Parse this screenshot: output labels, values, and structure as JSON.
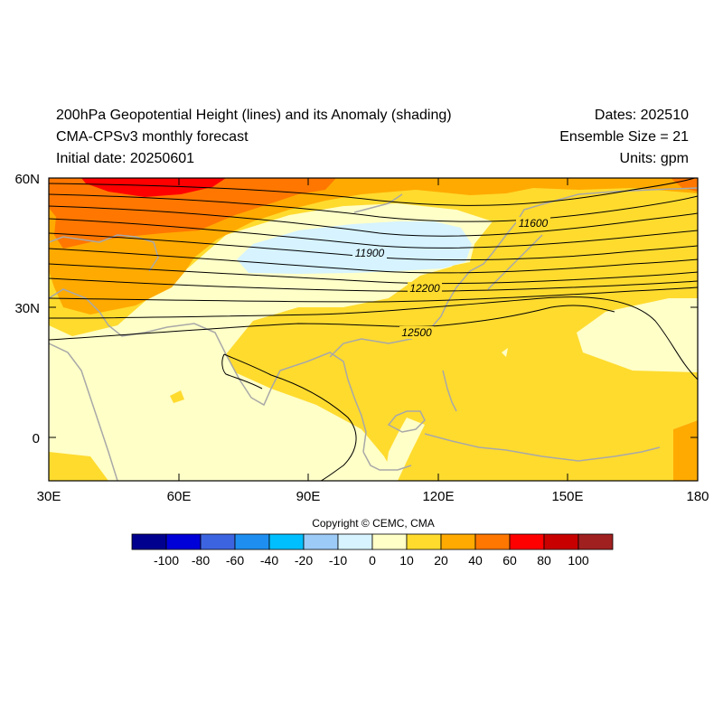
{
  "header": {
    "title": "200hPa Geopotential Height (lines) and its Anomaly (shading)",
    "model": "CMA-CPSv3 monthly forecast",
    "initial_date": "Initial date: 20250601",
    "dates": "Dates: 202510",
    "ensemble": "Ensemble Size = 21",
    "units": "Units: gpm"
  },
  "axes": {
    "lon_ticks": [
      "30E",
      "60E",
      "90E",
      "120E",
      "150E",
      "180"
    ],
    "lat_ticks": [
      "60N",
      "30N",
      "0"
    ]
  },
  "contour_labels": [
    "11600",
    "11900",
    "12200",
    "12500"
  ],
  "copyright": "Copyright © CEMC, CMA",
  "colorbar": {
    "labels": [
      "-100",
      "-80",
      "-60",
      "-40",
      "-20",
      "-10",
      "0",
      "10",
      "20",
      "40",
      "60",
      "80",
      "100"
    ],
    "colors": [
      "#00008f",
      "#0000d8",
      "#3d64e0",
      "#1e8ff0",
      "#00bfff",
      "#9ccbf7",
      "#d6f3ff",
      "#ffffc8",
      "#ffdb2e",
      "#ffaa00",
      "#ff7700",
      "#ff0000",
      "#c80000",
      "#a02020"
    ]
  },
  "colors": {
    "land_outline": "#a8a8a8",
    "contour": "#000000"
  }
}
